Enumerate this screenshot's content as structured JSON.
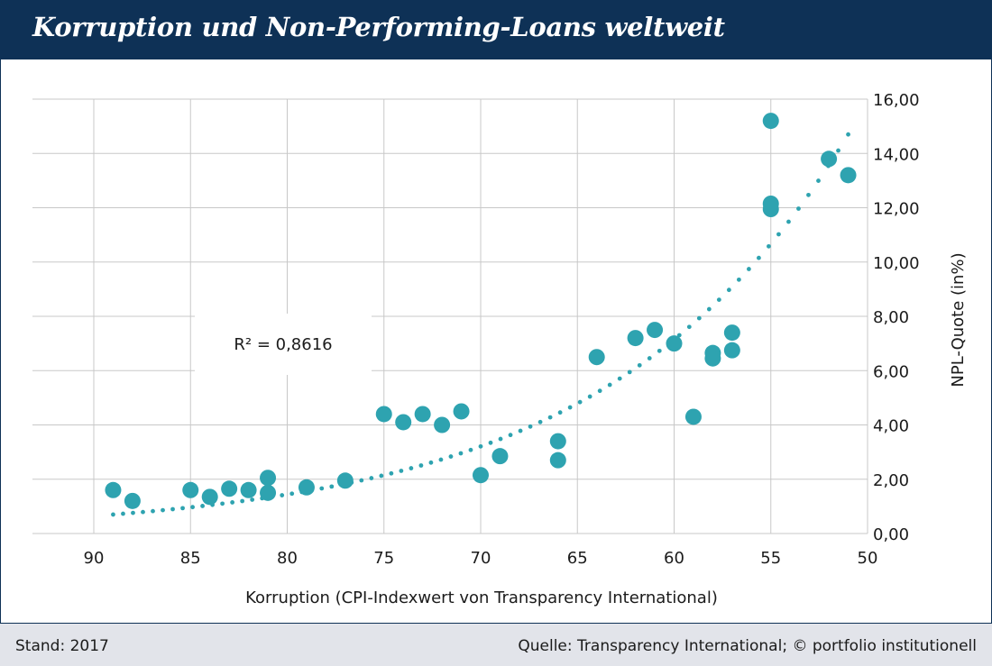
{
  "header": {
    "title": "Korruption und Non-Performing-Loans weltweit"
  },
  "footer": {
    "stand": "Stand: 2017",
    "source": "Quelle: Transparency International; © portfolio institutionell"
  },
  "colors": {
    "header_bg": "#0e3156",
    "point": "#2ea3b0",
    "trendline": "#2ea3b0",
    "grid": "#c8c8c8",
    "footer_bg": "#e2e4ea"
  },
  "chart_data": {
    "type": "scatter",
    "xlabel": "Korruption (CPI-Indexwert von Transparency International)",
    "ylabel": "NPL-Quote (in%)",
    "xlim": [
      90,
      50
    ],
    "x_reversed": true,
    "ylim": [
      0,
      16
    ],
    "x_ticks": [
      "90",
      "85",
      "80",
      "75",
      "70",
      "65",
      "60",
      "55",
      "50"
    ],
    "x_tick_values": [
      90,
      85,
      80,
      75,
      70,
      65,
      60,
      55,
      50
    ],
    "y_ticks": [
      "0,00",
      "2,00",
      "4,00",
      "6,00",
      "8,00",
      "10,00",
      "12,00",
      "14,00",
      "16,00"
    ],
    "y_tick_values": [
      0,
      2,
      4,
      6,
      8,
      10,
      12,
      14,
      16
    ],
    "y_axis_side": "right",
    "grid": true,
    "annotation": "R² = 0,8616",
    "trendline": {
      "type": "exponential",
      "style": "dotted",
      "x_range": [
        89,
        51
      ],
      "y_at_start": 0.7,
      "y_at_end": 14.7
    },
    "points": [
      {
        "x": 89,
        "y": 1.6
      },
      {
        "x": 88,
        "y": 1.2
      },
      {
        "x": 85,
        "y": 1.6
      },
      {
        "x": 84,
        "y": 1.35
      },
      {
        "x": 83,
        "y": 1.65
      },
      {
        "x": 82,
        "y": 1.6
      },
      {
        "x": 81,
        "y": 2.05
      },
      {
        "x": 81,
        "y": 1.5
      },
      {
        "x": 79,
        "y": 1.7
      },
      {
        "x": 77,
        "y": 1.95
      },
      {
        "x": 75,
        "y": 4.4
      },
      {
        "x": 74,
        "y": 4.1
      },
      {
        "x": 73,
        "y": 4.4
      },
      {
        "x": 72,
        "y": 4.0
      },
      {
        "x": 71,
        "y": 4.5
      },
      {
        "x": 70,
        "y": 2.15
      },
      {
        "x": 69,
        "y": 2.85
      },
      {
        "x": 66,
        "y": 3.4
      },
      {
        "x": 66,
        "y": 2.7
      },
      {
        "x": 64,
        "y": 6.5
      },
      {
        "x": 62,
        "y": 7.2
      },
      {
        "x": 61,
        "y": 7.5
      },
      {
        "x": 60,
        "y": 7.0
      },
      {
        "x": 59,
        "y": 4.3
      },
      {
        "x": 58,
        "y": 6.65
      },
      {
        "x": 58,
        "y": 6.45
      },
      {
        "x": 57,
        "y": 7.4
      },
      {
        "x": 57,
        "y": 6.75
      },
      {
        "x": 55,
        "y": 15.2
      },
      {
        "x": 55,
        "y": 12.15
      },
      {
        "x": 55,
        "y": 11.95
      },
      {
        "x": 52,
        "y": 13.8
      },
      {
        "x": 51,
        "y": 13.2
      }
    ]
  }
}
